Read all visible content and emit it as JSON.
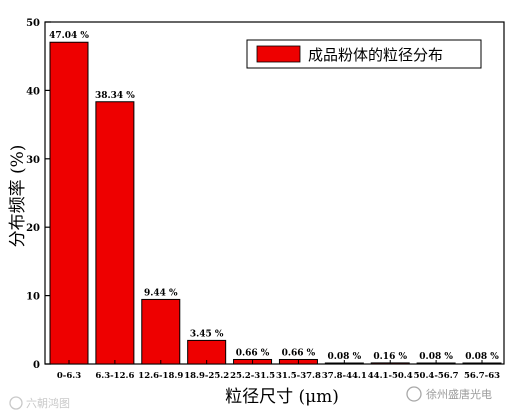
{
  "chart_data": {
    "type": "bar",
    "categories": [
      "0-6.3",
      "6.3-12.6",
      "12.6-18.9",
      "18.9-25.2",
      "25.2-31.5",
      "31.5-37.8",
      "37.8-44.1",
      "44.1-50.4",
      "50.4-56.7",
      "56.7-63"
    ],
    "values": [
      47.04,
      38.34,
      9.44,
      3.45,
      0.66,
      0.66,
      0.08,
      0.16,
      0.08,
      0.08
    ],
    "data_labels": [
      "47.04 %",
      "38.34 %",
      "9.44 %",
      "3.45 %",
      "0.66 %",
      "0.66 %",
      "0.08 %",
      "0.16 %",
      "0.08 %",
      "0.08 %"
    ],
    "series": [
      {
        "name": "成品粉体的粒径分布",
        "values": [
          47.04,
          38.34,
          9.44,
          3.45,
          0.66,
          0.66,
          0.08,
          0.16,
          0.08,
          0.08
        ]
      }
    ],
    "xlabel": "粒径尺寸 (μm)",
    "ylabel": "分布频率 (%)",
    "ylim": [
      0,
      50
    ],
    "yticks": [
      "0",
      "10",
      "20",
      "30",
      "40",
      "50"
    ],
    "grid": false,
    "legend_position": "top-right",
    "bar_color": "#ee0000"
  },
  "watermarks": {
    "left": "六朝鸿图",
    "right": "徐州盛唐光电"
  }
}
